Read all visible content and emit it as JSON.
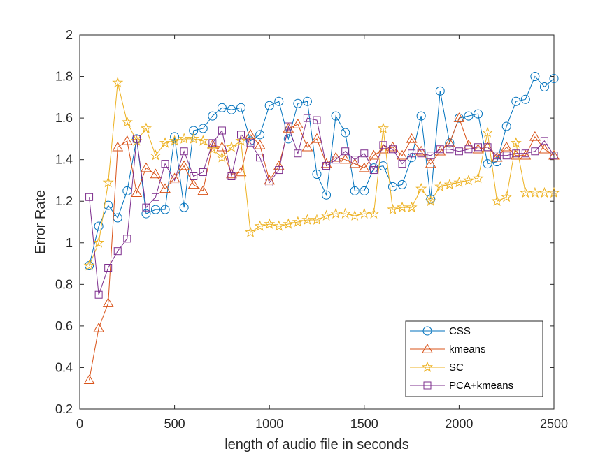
{
  "chart_data": {
    "type": "line",
    "xlabel": "length of audio file in seconds",
    "ylabel": "Error Rate",
    "xlim": [
      0,
      2500
    ],
    "ylim": [
      0.2,
      2
    ],
    "xticks": [
      0,
      500,
      1000,
      1500,
      2000,
      2500
    ],
    "yticks": [
      0.2,
      0.4,
      0.6,
      0.8,
      1,
      1.2,
      1.4,
      1.6,
      1.8,
      2
    ],
    "xtick_labels": [
      "0",
      "500",
      "1000",
      "1500",
      "2000",
      "2500"
    ],
    "ytick_labels": [
      "0.2",
      "0.4",
      "0.6",
      "0.8",
      "1",
      "1.2",
      "1.4",
      "1.6",
      "1.8",
      "2"
    ],
    "grid": false,
    "legend_position": "bottom-right",
    "x": [
      50,
      100,
      150,
      200,
      250,
      300,
      350,
      400,
      450,
      500,
      550,
      600,
      650,
      700,
      750,
      800,
      850,
      900,
      950,
      1000,
      1050,
      1100,
      1150,
      1200,
      1250,
      1300,
      1350,
      1400,
      1450,
      1500,
      1550,
      1600,
      1650,
      1700,
      1750,
      1800,
      1850,
      1900,
      1950,
      2000,
      2050,
      2100,
      2150,
      2200,
      2250,
      2300,
      2350,
      2400,
      2450,
      2500
    ],
    "series": [
      {
        "name": "CSS",
        "color": "#0072BD",
        "marker": "circle",
        "values": [
          0.89,
          1.08,
          1.18,
          1.12,
          1.25,
          1.5,
          1.14,
          1.16,
          1.16,
          1.51,
          1.17,
          1.54,
          1.55,
          1.61,
          1.65,
          1.64,
          1.65,
          1.49,
          1.52,
          1.66,
          1.68,
          1.5,
          1.67,
          1.68,
          1.33,
          1.23,
          1.61,
          1.53,
          1.25,
          1.25,
          1.36,
          1.37,
          1.27,
          1.28,
          1.41,
          1.61,
          1.21,
          1.73,
          1.48,
          1.6,
          1.61,
          1.62,
          1.38,
          1.39,
          1.56,
          1.68,
          1.69,
          1.8,
          1.75,
          1.79
        ]
      },
      {
        "name": "kmeans",
        "color": "#D95319",
        "marker": "triangle",
        "values": [
          0.34,
          0.59,
          0.71,
          1.46,
          1.49,
          1.24,
          1.36,
          1.33,
          1.26,
          1.31,
          1.37,
          1.28,
          1.25,
          1.47,
          1.46,
          1.33,
          1.34,
          1.52,
          1.47,
          1.3,
          1.37,
          1.55,
          1.57,
          1.46,
          1.5,
          1.38,
          1.41,
          1.4,
          1.38,
          1.36,
          1.42,
          1.45,
          1.46,
          1.42,
          1.5,
          1.44,
          1.38,
          1.44,
          1.48,
          1.6,
          1.47,
          1.45,
          1.46,
          1.41,
          1.46,
          1.42,
          1.42,
          1.51,
          1.45,
          1.42
        ]
      },
      {
        "name": "SC",
        "color": "#EDB120",
        "marker": "star",
        "values": [
          0.89,
          1.0,
          1.29,
          1.77,
          1.58,
          1.49,
          1.55,
          1.42,
          1.48,
          1.49,
          1.5,
          1.5,
          1.49,
          1.45,
          1.41,
          1.46,
          1.49,
          1.05,
          1.08,
          1.09,
          1.08,
          1.09,
          1.1,
          1.11,
          1.11,
          1.13,
          1.14,
          1.14,
          1.13,
          1.14,
          1.14,
          1.55,
          1.16,
          1.17,
          1.17,
          1.26,
          1.2,
          1.27,
          1.28,
          1.29,
          1.3,
          1.31,
          1.53,
          1.2,
          1.22,
          1.48,
          1.24,
          1.24,
          1.24,
          1.24
        ]
      },
      {
        "name": "PCA+kmeans",
        "color": "#7E2F8E",
        "marker": "square",
        "values": [
          1.22,
          0.75,
          0.88,
          0.96,
          1.02,
          1.5,
          1.17,
          1.22,
          1.38,
          1.3,
          1.44,
          1.32,
          1.34,
          1.48,
          1.54,
          1.32,
          1.52,
          1.48,
          1.41,
          1.29,
          1.35,
          1.56,
          1.43,
          1.6,
          1.59,
          1.37,
          1.4,
          1.44,
          1.4,
          1.43,
          1.35,
          1.47,
          1.45,
          1.38,
          1.43,
          1.43,
          1.42,
          1.45,
          1.45,
          1.44,
          1.45,
          1.46,
          1.46,
          1.42,
          1.42,
          1.43,
          1.43,
          1.44,
          1.49,
          1.42
        ]
      }
    ]
  }
}
